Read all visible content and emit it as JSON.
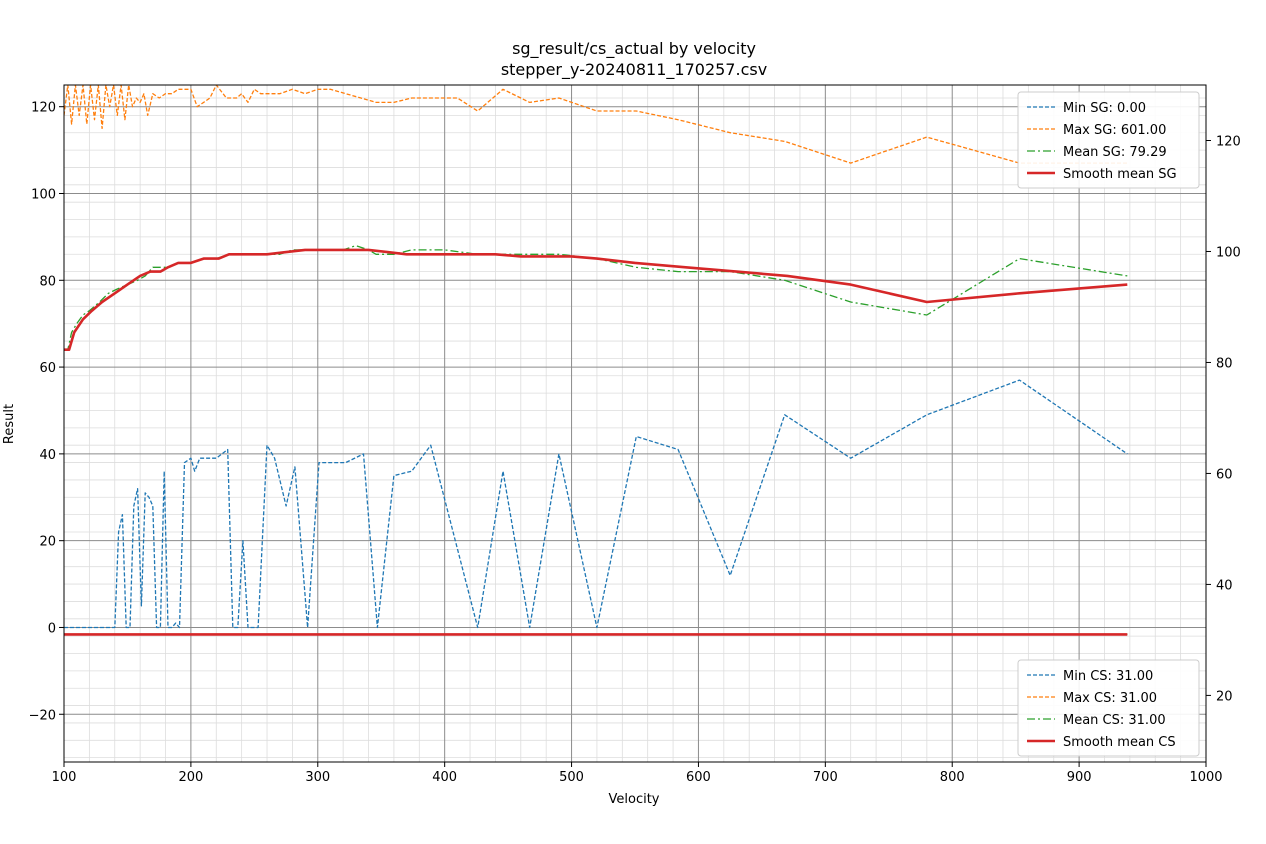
{
  "chart_data": {
    "type": "line",
    "title": "sg_result/cs_actual by velocity",
    "subtitle": "stepper_y-20240811_170257.csv",
    "xlabel": "Velocity",
    "ylabel": "Result",
    "xlim": [
      100,
      1000
    ],
    "ylim": [
      -31,
      125
    ],
    "y2lim": [
      8,
      130
    ],
    "grid": true,
    "x_ticks": [
      100,
      200,
      300,
      400,
      500,
      600,
      700,
      800,
      900,
      1000
    ],
    "y_ticks": [
      -20,
      0,
      20,
      40,
      60,
      80,
      100,
      120
    ],
    "y2_ticks": [
      20,
      40,
      60,
      80,
      100,
      120
    ],
    "legends": [
      {
        "placement": "top-right",
        "entries": [
          "Min SG: 0.00",
          "Max SG: 601.00",
          "Mean SG: 79.29",
          "Smooth mean SG"
        ]
      },
      {
        "placement": "bottom-right",
        "entries": [
          "Min CS: 31.00",
          "Max CS: 31.00",
          "Mean CS: 31.00",
          "Smooth mean CS"
        ]
      }
    ],
    "colors": {
      "min": "#1f77b4",
      "max": "#ff7f0e",
      "mean": "#2ca02c",
      "smooth": "#d62728"
    },
    "series": [
      {
        "name": "Min SG: 0.00",
        "axis": "left",
        "style": "dashed",
        "x": [
          100,
          140,
          143,
          146,
          149,
          152,
          155,
          158,
          161,
          164,
          167,
          170,
          173,
          176,
          179,
          182,
          185,
          188,
          191,
          195,
          200,
          203,
          207,
          213,
          220,
          229,
          233,
          237,
          241,
          245,
          249,
          253,
          260,
          266,
          275,
          282,
          292,
          301,
          311,
          322,
          336,
          347,
          360,
          374,
          389,
          426,
          446,
          467,
          490,
          520,
          551,
          584,
          625,
          668,
          720,
          780,
          853,
          938
        ],
        "y": [
          0,
          0,
          22,
          26,
          0,
          0,
          28,
          32,
          5,
          31,
          30,
          28,
          0,
          0,
          36,
          0,
          0,
          1,
          0,
          38,
          39,
          36,
          39,
          39,
          39,
          41,
          0,
          0,
          20,
          0,
          0,
          0,
          42,
          39,
          28,
          37,
          0,
          38,
          38,
          38,
          40,
          0,
          35,
          36,
          42,
          0,
          36,
          0,
          40,
          0,
          44,
          41,
          12,
          49,
          39,
          49,
          57,
          40
        ]
      },
      {
        "name": "Max SG: 601.00",
        "axis": "left",
        "style": "dashed",
        "x": [
          100,
          103,
          106,
          109,
          112,
          115,
          118,
          121,
          124,
          127,
          130,
          133,
          136,
          139,
          142,
          145,
          148,
          151,
          154,
          157,
          160,
          163,
          166,
          170,
          175,
          180,
          185,
          190,
          195,
          200,
          205,
          210,
          215,
          220,
          228,
          236,
          240,
          245,
          250,
          255,
          260,
          270,
          280,
          290,
          300,
          310,
          322,
          334,
          346,
          360,
          374,
          389,
          400,
          410,
          426,
          446,
          467,
          490,
          520,
          551,
          584,
          625,
          668,
          720,
          780,
          853,
          938
        ],
        "y": [
          118,
          125,
          116,
          125,
          118,
          125,
          116,
          125,
          117,
          125,
          115,
          125,
          120,
          125,
          118,
          125,
          117,
          125,
          120,
          122,
          121,
          123,
          118,
          123,
          122,
          123,
          123,
          124,
          124,
          124,
          120,
          121,
          122,
          125,
          122,
          122,
          123,
          121,
          124,
          123,
          123,
          123,
          124,
          123,
          124,
          124,
          123,
          122,
          121,
          121,
          122,
          122,
          122,
          122,
          119,
          124,
          121,
          122,
          119,
          119,
          117,
          114,
          112,
          107,
          113,
          107,
          107
        ]
      },
      {
        "name": "Mean SG: 79.29",
        "axis": "left",
        "style": "dashdot",
        "x": [
          100,
          103,
          106,
          110,
          115,
          120,
          128,
          135,
          142,
          150,
          158,
          164,
          170,
          176,
          182,
          190,
          200,
          210,
          220,
          230,
          240,
          250,
          260,
          270,
          280,
          290,
          300,
          310,
          320,
          330,
          340,
          346,
          360,
          374,
          389,
          400,
          426,
          446,
          467,
          490,
          520,
          551,
          584,
          625,
          668,
          720,
          780,
          853,
          938
        ],
        "y": [
          64,
          64,
          68,
          70,
          72,
          73,
          75,
          77,
          78,
          79,
          80,
          81,
          83,
          83,
          83,
          84,
          84,
          85,
          85,
          86,
          86,
          86,
          86,
          86,
          87,
          87,
          87,
          87,
          87,
          88,
          87,
          86,
          86,
          87,
          87,
          87,
          86,
          86,
          86,
          86,
          85,
          83,
          82,
          82,
          80,
          75,
          72,
          85,
          81
        ]
      },
      {
        "name": "Smooth mean SG",
        "axis": "left",
        "style": "solid",
        "x": [
          100,
          104,
          108,
          115,
          122,
          130,
          140,
          150,
          160,
          168,
          176,
          182,
          190,
          200,
          210,
          222,
          230,
          240,
          250,
          260,
          275,
          290,
          300,
          310,
          320,
          330,
          340,
          355,
          370,
          385,
          400,
          420,
          440,
          460,
          480,
          500,
          520,
          550,
          590,
          630,
          670,
          720,
          780,
          853,
          938
        ],
        "y": [
          64,
          64,
          68,
          71,
          73,
          75,
          77,
          79,
          81,
          82,
          82,
          83,
          84,
          84,
          85,
          85,
          86,
          86,
          86,
          86,
          86.5,
          87,
          87,
          87,
          87,
          87,
          87,
          86.5,
          86,
          86,
          86,
          86,
          86,
          85.5,
          85.5,
          85.5,
          85,
          84,
          83,
          82,
          81,
          79,
          75,
          77,
          79
        ]
      },
      {
        "name": "Min CS: 31.00",
        "axis": "right",
        "style": "dashed",
        "x": [
          100,
          938
        ],
        "y": [
          31,
          31
        ]
      },
      {
        "name": "Max CS: 31.00",
        "axis": "right",
        "style": "dashed",
        "x": [
          100,
          938
        ],
        "y": [
          31,
          31
        ]
      },
      {
        "name": "Mean CS: 31.00",
        "axis": "right",
        "style": "dashdot",
        "x": [
          100,
          938
        ],
        "y": [
          31,
          31
        ]
      },
      {
        "name": "Smooth mean CS",
        "axis": "right",
        "style": "solid",
        "x": [
          100,
          938
        ],
        "y": [
          31,
          31
        ]
      }
    ]
  }
}
